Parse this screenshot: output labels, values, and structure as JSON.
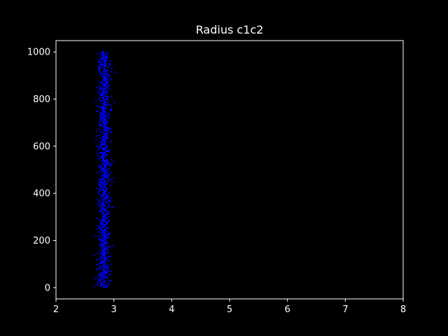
{
  "chart_data": {
    "type": "scatter",
    "title": "Radius c1c2",
    "xlabel": "",
    "ylabel": "",
    "xlim": [
      2,
      8
    ],
    "ylim": [
      -48,
      1048
    ],
    "xticks": [
      2,
      3,
      4,
      5,
      6,
      7,
      8
    ],
    "yticks": [
      0,
      200,
      400,
      600,
      800,
      1000
    ],
    "grid": false,
    "legend": "none",
    "colors": {
      "background": "#000000",
      "axes": "#ffffff",
      "text": "#ffffff",
      "points": "#0000ff"
    },
    "series": [
      {
        "x_center": 2.83,
        "x_spread": 0.055,
        "y_range": [
          0,
          1000
        ],
        "point_count": 1000
      }
    ]
  }
}
